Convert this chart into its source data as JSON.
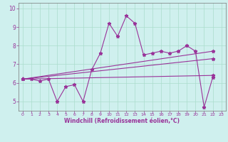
{
  "title": "",
  "xlabel": "Windchill (Refroidissement éolien,°C)",
  "background_color": "#cff0ee",
  "line_color": "#993399",
  "grid_color": "#aaddcc",
  "xlim": [
    -0.5,
    23.5
  ],
  "ylim": [
    4.5,
    10.3
  ],
  "yticks": [
    5,
    6,
    7,
    8,
    9,
    10
  ],
  "xticks": [
    0,
    1,
    2,
    3,
    4,
    5,
    6,
    7,
    8,
    9,
    10,
    11,
    12,
    13,
    14,
    15,
    16,
    17,
    18,
    19,
    20,
    21,
    22,
    23
  ],
  "series1_x": [
    0,
    1,
    2,
    3,
    4,
    5,
    6,
    7,
    8,
    9,
    10,
    11,
    12,
    13,
    14,
    15,
    16,
    17,
    18,
    19,
    20,
    21,
    22
  ],
  "series1_y": [
    6.2,
    6.2,
    6.1,
    6.2,
    5.0,
    5.8,
    5.9,
    5.0,
    6.7,
    7.6,
    9.2,
    8.5,
    9.6,
    9.2,
    7.5,
    7.6,
    7.7,
    7.6,
    7.7,
    8.0,
    7.7,
    4.7,
    6.3
  ],
  "series2_x": [
    0,
    22
  ],
  "series2_y": [
    6.2,
    7.7
  ],
  "series3_x": [
    0,
    22
  ],
  "series3_y": [
    6.2,
    7.3
  ],
  "series4_x": [
    0,
    22
  ],
  "series4_y": [
    6.2,
    6.4
  ]
}
